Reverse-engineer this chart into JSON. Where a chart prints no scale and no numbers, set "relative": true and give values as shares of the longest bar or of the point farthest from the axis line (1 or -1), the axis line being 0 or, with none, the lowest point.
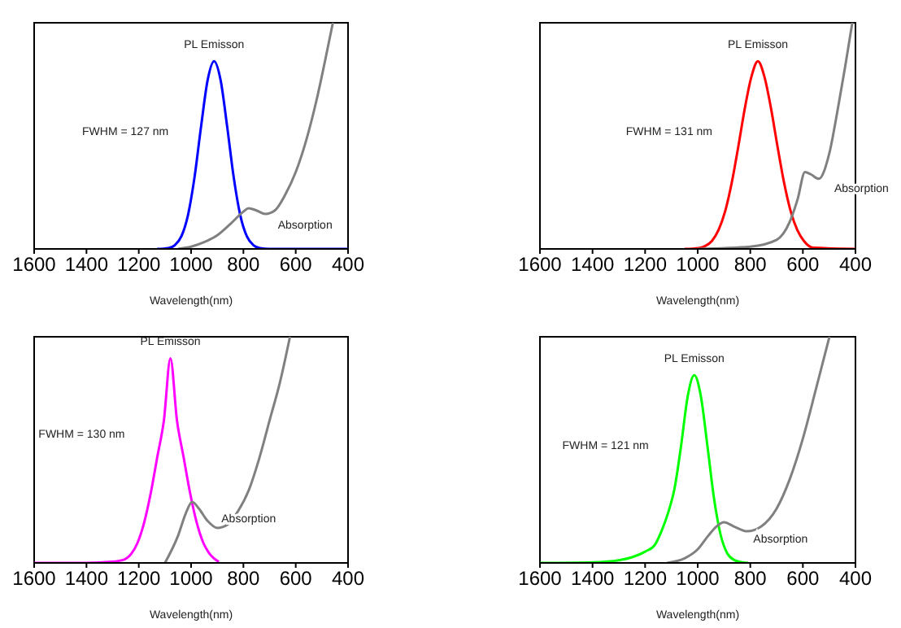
{
  "chart_data": [
    {
      "type": "line",
      "relative": true,
      "xlabel": "Wavelength(nm)",
      "xlim": [
        1600,
        400
      ],
      "xticks": [
        1600,
        1400,
        1200,
        1000,
        800,
        600,
        400
      ],
      "tick_labels": "x",
      "marker": "none",
      "line_style": "solid",
      "series": [
        {
          "name": "PL Emisson",
          "color": "#0000ff",
          "x": [
            1130,
            1087,
            1062,
            1037,
            1012,
            987,
            962,
            937,
            912,
            887,
            862,
            837,
            812,
            787,
            762,
            737,
            700,
            600,
            400
          ],
          "values": [
            0,
            0.004,
            0.017,
            0.056,
            0.149,
            0.316,
            0.54,
            0.745,
            0.83,
            0.745,
            0.54,
            0.316,
            0.149,
            0.056,
            0.017,
            0.004,
            0,
            0,
            0
          ]
        },
        {
          "name": "Absorption",
          "color": "#808080",
          "x": [
            1050,
            1000,
            950,
            900,
            850,
            800,
            780,
            750,
            716,
            680,
            640,
            600,
            560,
            520,
            490,
            458
          ],
          "values": [
            0,
            0.01,
            0.03,
            0.06,
            0.11,
            0.165,
            0.18,
            0.17,
            0.155,
            0.17,
            0.24,
            0.34,
            0.48,
            0.66,
            0.82,
            1
          ]
        }
      ],
      "annotations": [
        "FWHM = 127 nm"
      ]
    },
    {
      "type": "line",
      "relative": true,
      "xlabel": "Wavelength(nm)",
      "xlim": [
        1600,
        400
      ],
      "xticks": [
        1600,
        1400,
        1200,
        1000,
        800,
        600,
        400
      ],
      "tick_labels": "x",
      "marker": "none",
      "line_style": "solid",
      "series": [
        {
          "name": "PL Emisson",
          "color": "#ff0000",
          "x": [
            1050,
            996,
            971,
            946,
            921,
            896,
            871,
            846,
            821,
            796,
            771,
            746,
            721,
            696,
            671,
            646,
            621,
            596,
            560,
            400
          ],
          "values": [
            0,
            0.004,
            0.013,
            0.035,
            0.083,
            0.165,
            0.29,
            0.45,
            0.62,
            0.76,
            0.83,
            0.76,
            0.62,
            0.45,
            0.29,
            0.165,
            0.083,
            0.035,
            0.005,
            0
          ]
        },
        {
          "name": "Absorption",
          "color": "#808080",
          "x": [
            1000,
            800,
            700,
            650,
            620,
            592,
            570,
            540,
            500,
            470,
            440,
            412
          ],
          "values": [
            0,
            0.01,
            0.04,
            0.12,
            0.22,
            0.34,
            0.33,
            0.31,
            0.42,
            0.6,
            0.8,
            1
          ]
        }
      ],
      "annotations": [
        "FWHM = 131 nm"
      ]
    },
    {
      "type": "line",
      "relative": true,
      "xlabel": "Wavelength(nm)",
      "xlim": [
        1600,
        400
      ],
      "xticks": [
        1600,
        1400,
        1200,
        1000,
        800,
        600,
        400
      ],
      "tick_labels": "x",
      "marker": "none",
      "line_style": "solid",
      "series": [
        {
          "name": "PL Emisson",
          "color": "#ff00ff",
          "x": [
            1600,
            1400,
            1303,
            1254,
            1229,
            1204,
            1179,
            1154,
            1129,
            1104,
            1079,
            1054,
            1029,
            1004,
            979,
            954,
            929,
            894
          ],
          "values": [
            0,
            0,
            0.005,
            0.016,
            0.04,
            0.091,
            0.18,
            0.31,
            0.47,
            0.63,
            0.905,
            0.63,
            0.47,
            0.31,
            0.18,
            0.091,
            0.04,
            0.005
          ]
        },
        {
          "name": "Absorption",
          "color": "#808080",
          "x": [
            1100,
            1050,
            1020,
            996,
            970,
            940,
            900,
            860,
            820,
            780,
            740,
            700,
            660,
            622
          ],
          "values": [
            0,
            0.12,
            0.22,
            0.27,
            0.24,
            0.19,
            0.155,
            0.17,
            0.23,
            0.32,
            0.46,
            0.63,
            0.8,
            1
          ]
        }
      ],
      "annotations": [
        "FWHM = 130 nm"
      ]
    },
    {
      "type": "line",
      "relative": true,
      "xlabel": "Wavelength(nm)",
      "xlim": [
        1600,
        400
      ],
      "xticks": [
        1600,
        1400,
        1200,
        1000,
        800,
        600,
        400
      ],
      "tick_labels": "x",
      "marker": "none",
      "line_style": "solid",
      "series": [
        {
          "name": "PL Emisson",
          "color": "#00ff00",
          "x": [
            1600,
            1400,
            1300,
            1250,
            1200,
            1163,
            1138,
            1113,
            1088,
            1063,
            1038,
            1013,
            988,
            963,
            938,
            913,
            888,
            863,
            830,
            808
          ],
          "values": [
            0,
            0.003,
            0.012,
            0.025,
            0.05,
            0.08,
            0.14,
            0.22,
            0.33,
            0.52,
            0.737,
            0.83,
            0.737,
            0.517,
            0.286,
            0.125,
            0.043,
            0.014,
            0.003,
            0
          ]
        },
        {
          "name": "Absorption",
          "color": "#808080",
          "x": [
            1116,
            1050,
            1000,
            960,
            930,
            900,
            860,
            812,
            760,
            700,
            650,
            600,
            550,
            499
          ],
          "values": [
            0,
            0.02,
            0.06,
            0.12,
            0.16,
            0.18,
            0.16,
            0.14,
            0.16,
            0.24,
            0.37,
            0.55,
            0.77,
            1
          ]
        }
      ],
      "annotations": [
        "FWHM = 121 nm"
      ]
    }
  ]
}
